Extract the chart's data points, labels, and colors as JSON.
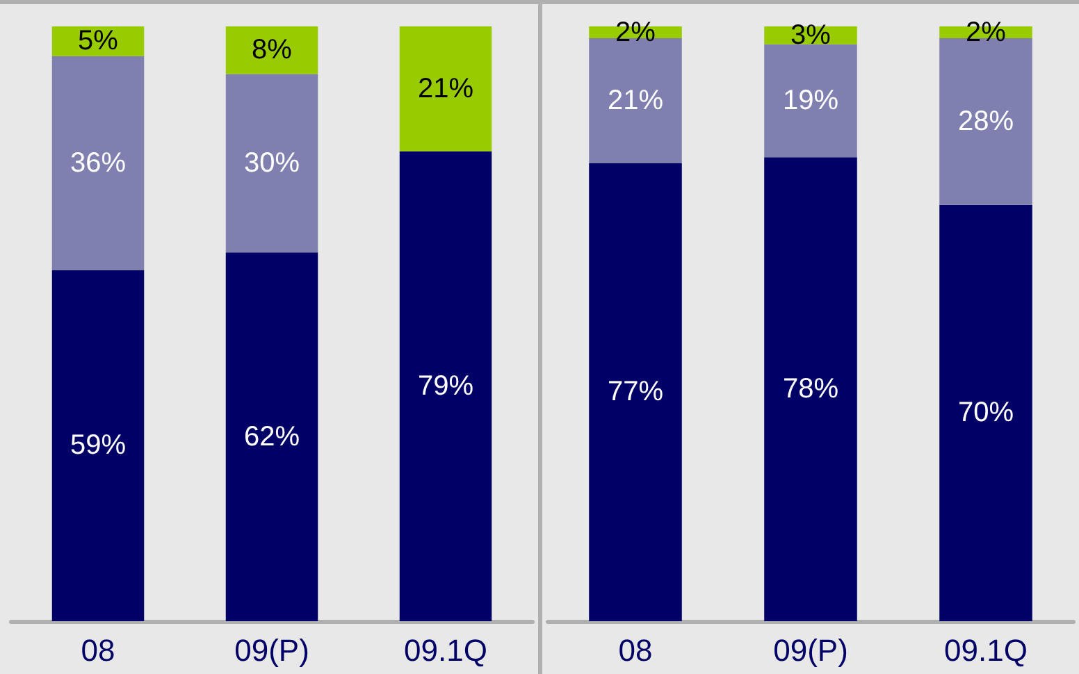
{
  "chart_data": [
    {
      "type": "bar",
      "stacked": true,
      "categories": [
        "08",
        "09(P)",
        "09.1Q"
      ],
      "tick_labels": "x",
      "series": [
        {
          "color": "#000066",
          "values": [
            59,
            62,
            79
          ],
          "value_labels": [
            "59%",
            "62%",
            "79%"
          ]
        },
        {
          "color": "#8080b0",
          "values": [
            36,
            30,
            null
          ],
          "value_labels": [
            "36%",
            "30%",
            null
          ]
        },
        {
          "color": "#99cc00",
          "values": [
            5,
            8,
            21
          ],
          "value_labels": [
            "5%",
            "8%",
            "21%"
          ]
        }
      ]
    },
    {
      "type": "bar",
      "stacked": true,
      "categories": [
        "08",
        "09(P)",
        "09.1Q"
      ],
      "tick_labels": "x",
      "series": [
        {
          "color": "#000066",
          "values": [
            77,
            78,
            70
          ],
          "value_labels": [
            "77%",
            "78%",
            "70%"
          ]
        },
        {
          "color": "#8080b0",
          "values": [
            21,
            19,
            28
          ],
          "value_labels": [
            "21%",
            "19%",
            "28%"
          ]
        },
        {
          "color": "#99cc00",
          "values": [
            2,
            3,
            2
          ],
          "value_labels": [
            "2%",
            "3%",
            "2%"
          ]
        }
      ]
    }
  ]
}
